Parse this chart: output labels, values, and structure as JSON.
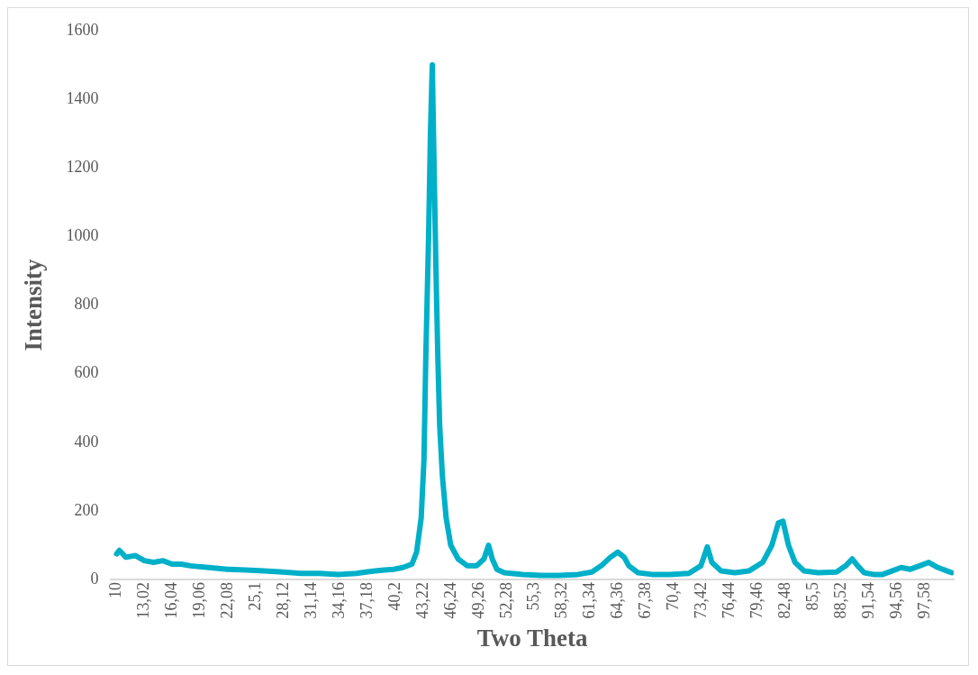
{
  "chart_data": {
    "type": "line",
    "xlabel": "Two Theta",
    "ylabel": "Intensity",
    "x": [
      10,
      10.3,
      11,
      12,
      13,
      14,
      15,
      16,
      17,
      18,
      20,
      22,
      24,
      26,
      28,
      30,
      32,
      34,
      36,
      37,
      38,
      39,
      40,
      41,
      42,
      42.5,
      43,
      43.3,
      43.5,
      43.8,
      44.0,
      44.2,
      44.4,
      44.6,
      44.8,
      45.0,
      45.3,
      45.7,
      46.2,
      47,
      48,
      49,
      49.8,
      50.3,
      50.7,
      51.2,
      52,
      54,
      56,
      58,
      60,
      61.5,
      62.5,
      63.5,
      64.3,
      65,
      65.5,
      66.5,
      68,
      70,
      72,
      73.3,
      74.0,
      74.5,
      75.5,
      77,
      78.5,
      80,
      81,
      81.7,
      82.2,
      82.8,
      83.5,
      84.5,
      86,
      88,
      89,
      89.7,
      90.3,
      91,
      92,
      93,
      94,
      95,
      96,
      97,
      98,
      99,
      100,
      100.5
    ],
    "series": [
      {
        "color": "#00b0c8",
        "values": [
          75,
          85,
          65,
          70,
          55,
          50,
          55,
          45,
          45,
          40,
          35,
          30,
          28,
          25,
          22,
          18,
          18,
          15,
          18,
          22,
          25,
          28,
          30,
          35,
          45,
          80,
          180,
          350,
          650,
          1000,
          1300,
          1500,
          1200,
          900,
          650,
          450,
          300,
          180,
          100,
          60,
          40,
          40,
          60,
          100,
          60,
          30,
          20,
          15,
          12,
          12,
          15,
          22,
          40,
          65,
          80,
          65,
          40,
          20,
          15,
          15,
          18,
          40,
          95,
          50,
          25,
          20,
          25,
          50,
          100,
          165,
          170,
          100,
          50,
          25,
          20,
          22,
          40,
          60,
          40,
          20,
          15,
          15,
          25,
          35,
          30,
          40,
          50,
          35,
          25,
          20
        ]
      }
    ],
    "xlim": [
      9.4,
      100.7
    ],
    "xticks": [
      10,
      {
        "value": 13.02,
        "label": "13,02"
      },
      {
        "value": 16.04,
        "label": "16,04"
      },
      {
        "value": 19.06,
        "label": "19,06"
      },
      {
        "value": 22.08,
        "label": "22,08"
      },
      {
        "value": 25.1,
        "label": "25,1"
      },
      {
        "value": 28.12,
        "label": "28,12"
      },
      {
        "value": 31.14,
        "label": "31,14"
      },
      {
        "value": 34.16,
        "label": "34,16"
      },
      {
        "value": 37.18,
        "label": "37,18"
      },
      {
        "value": 40.2,
        "label": "40,2"
      },
      {
        "value": 43.22,
        "label": "43,22"
      },
      {
        "value": 46.24,
        "label": "46,24"
      },
      {
        "value": 49.26,
        "label": "49,26"
      },
      {
        "value": 52.28,
        "label": "52,28"
      },
      {
        "value": 55.3,
        "label": "55,3"
      },
      {
        "value": 58.32,
        "label": "58,32"
      },
      {
        "value": 61.34,
        "label": "61,34"
      },
      {
        "value": 64.36,
        "label": "64,36"
      },
      {
        "value": 67.38,
        "label": "67,38"
      },
      {
        "value": 70.4,
        "label": "70,4"
      },
      {
        "value": 73.42,
        "label": "73,42"
      },
      {
        "value": 76.44,
        "label": "76,44"
      },
      {
        "value": 79.46,
        "label": "79,46"
      },
      {
        "value": 82.48,
        "label": "82,48"
      },
      {
        "value": 85.5,
        "label": "85,5"
      },
      {
        "value": 88.52,
        "label": "88,52"
      },
      {
        "value": 91.54,
        "label": "91,54"
      },
      {
        "value": 94.56,
        "label": "94,56"
      },
      {
        "value": 97.58,
        "label": "97,58"
      }
    ],
    "ylim": [
      0,
      1600
    ],
    "yticks": [
      0,
      200,
      400,
      600,
      800,
      1000,
      1200,
      1400,
      1600
    ],
    "grid": false,
    "legend": false,
    "marker": "none",
    "line_style": "solid"
  }
}
